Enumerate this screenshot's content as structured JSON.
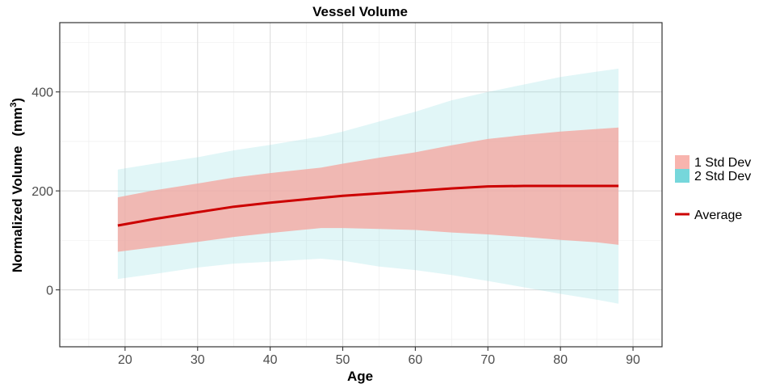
{
  "chart_data": {
    "type": "area",
    "title": "Vessel Volume",
    "xlabel": "Age",
    "ylabel": "Normalized Volume",
    "ylabel_unit_base": "(mm",
    "ylabel_unit_sup": "3",
    "ylabel_unit_close": ")",
    "xlim": [
      11,
      94
    ],
    "ylim": [
      -115,
      540
    ],
    "x_ticks": [
      20,
      30,
      40,
      50,
      60,
      70,
      80,
      90
    ],
    "y_ticks": [
      0,
      200,
      400
    ],
    "grid": true,
    "legend_position": "right",
    "colors": {
      "two_std": "#7fd6dd",
      "one_std": "#f4a6a0",
      "average": "#cc0000",
      "legend_one_std": "#f8b4ae",
      "legend_two_std": "#76d7db"
    },
    "x": [
      19,
      24,
      30,
      35,
      40,
      47,
      50,
      55,
      60,
      65,
      70,
      75,
      80,
      85,
      88
    ],
    "series": [
      {
        "name": "Average",
        "values": [
          130,
          143,
          157,
          168,
          176,
          186,
          190,
          195,
          200,
          205,
          209,
          210,
          210,
          210,
          210
        ]
      }
    ],
    "bands": [
      {
        "name": "2 Std Dev",
        "lower": [
          22,
          32,
          45,
          53,
          57,
          63,
          59,
          47,
          40,
          30,
          18,
          5,
          -8,
          -20,
          -28
        ],
        "upper": [
          243,
          255,
          268,
          282,
          293,
          310,
          320,
          340,
          360,
          383,
          400,
          415,
          430,
          441,
          447
        ]
      },
      {
        "name": "1 Std Dev",
        "lower": [
          77,
          86,
          97,
          107,
          115,
          125,
          125,
          123,
          121,
          116,
          112,
          107,
          101,
          96,
          91
        ],
        "upper": [
          187,
          201,
          215,
          227,
          236,
          247,
          255,
          267,
          278,
          292,
          305,
          313,
          320,
          325,
          328
        ]
      }
    ],
    "legend": {
      "one_std": "1 Std Dev",
      "two_std": "2 Std Dev",
      "average": "Average"
    }
  }
}
